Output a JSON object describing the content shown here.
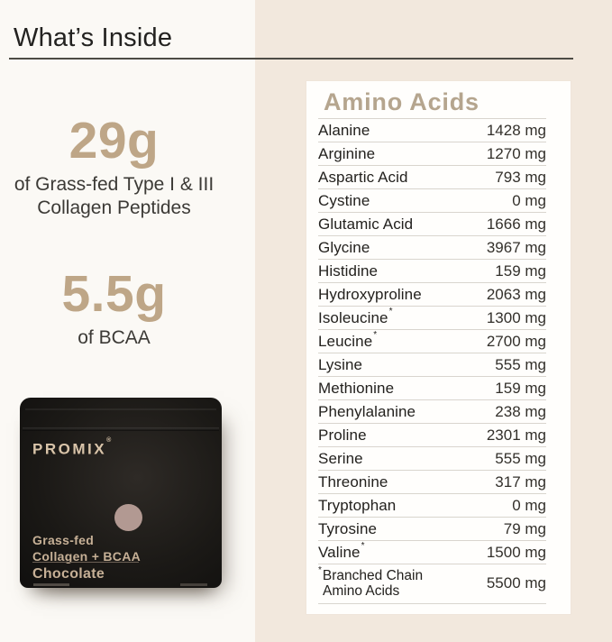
{
  "colors": {
    "page_bg": "#fbf9f5",
    "cream_bg": "#f2e8dd",
    "card_bg": "#fffefc",
    "card_border": "#efe5da",
    "rule_dark": "#4d4b45",
    "row_line": "#d9d5ce",
    "ink": "#232220",
    "ink_soft": "#3c3a36",
    "accent_number": "#bea687",
    "accent_title": "#b5a58e",
    "bag_text": "#d9c4a9",
    "bag_text_soft": "#c6b096",
    "swatch": "#b29992"
  },
  "header": {
    "title": "What’s Inside"
  },
  "stats": [
    {
      "value": "29g",
      "caption_line1": "of Grass-fed Type I & III",
      "caption_line2": "Collagen Peptides"
    },
    {
      "value": "5.5g",
      "caption_line1": "of BCAA"
    }
  ],
  "product": {
    "brand": "PROMIX",
    "reg_mark": "®",
    "name_line1": "Grass-fed",
    "name_line2": "Collagen + BCAA",
    "flavor": "Chocolate"
  },
  "panel": {
    "title": "Amino Acids",
    "rows": [
      {
        "name": "Alanine",
        "sup": "",
        "amount": "1428 mg"
      },
      {
        "name": "Arginine",
        "sup": "",
        "amount": "1270 mg"
      },
      {
        "name": "Aspartic Acid",
        "sup": "",
        "amount": "793 mg"
      },
      {
        "name": "Cystine",
        "sup": "",
        "amount": "0 mg"
      },
      {
        "name": "Glutamic Acid",
        "sup": "",
        "amount": "1666 mg"
      },
      {
        "name": "Glycine",
        "sup": "",
        "amount": "3967 mg"
      },
      {
        "name": "Histidine",
        "sup": "",
        "amount": "159 mg"
      },
      {
        "name": "Hydroxyproline",
        "sup": "",
        "amount": "2063 mg"
      },
      {
        "name": "Isoleucine",
        "sup": "*",
        "amount": "1300 mg"
      },
      {
        "name": "Leucine",
        "sup": "*",
        "amount": "2700 mg"
      },
      {
        "name": "Lysine",
        "sup": "",
        "amount": "555 mg"
      },
      {
        "name": "Methionine",
        "sup": "",
        "amount": "159 mg"
      },
      {
        "name": "Phenylalanine",
        "sup": "",
        "amount": "238 mg"
      },
      {
        "name": "Proline",
        "sup": "",
        "amount": "2301 mg"
      },
      {
        "name": "Serine",
        "sup": "",
        "amount": "555 mg"
      },
      {
        "name": "Threonine",
        "sup": "",
        "amount": "317 mg"
      },
      {
        "name": "Tryptophan",
        "sup": "",
        "amount": "0 mg"
      },
      {
        "name": "Tyrosine",
        "sup": "",
        "amount": "79 mg"
      },
      {
        "name": "Valine",
        "sup": "*",
        "amount": "1500 mg"
      }
    ],
    "footnote": {
      "sup": "*",
      "name_line1": "Branched Chain",
      "name_line2": "Amino Acids",
      "amount": "5500 mg"
    }
  }
}
